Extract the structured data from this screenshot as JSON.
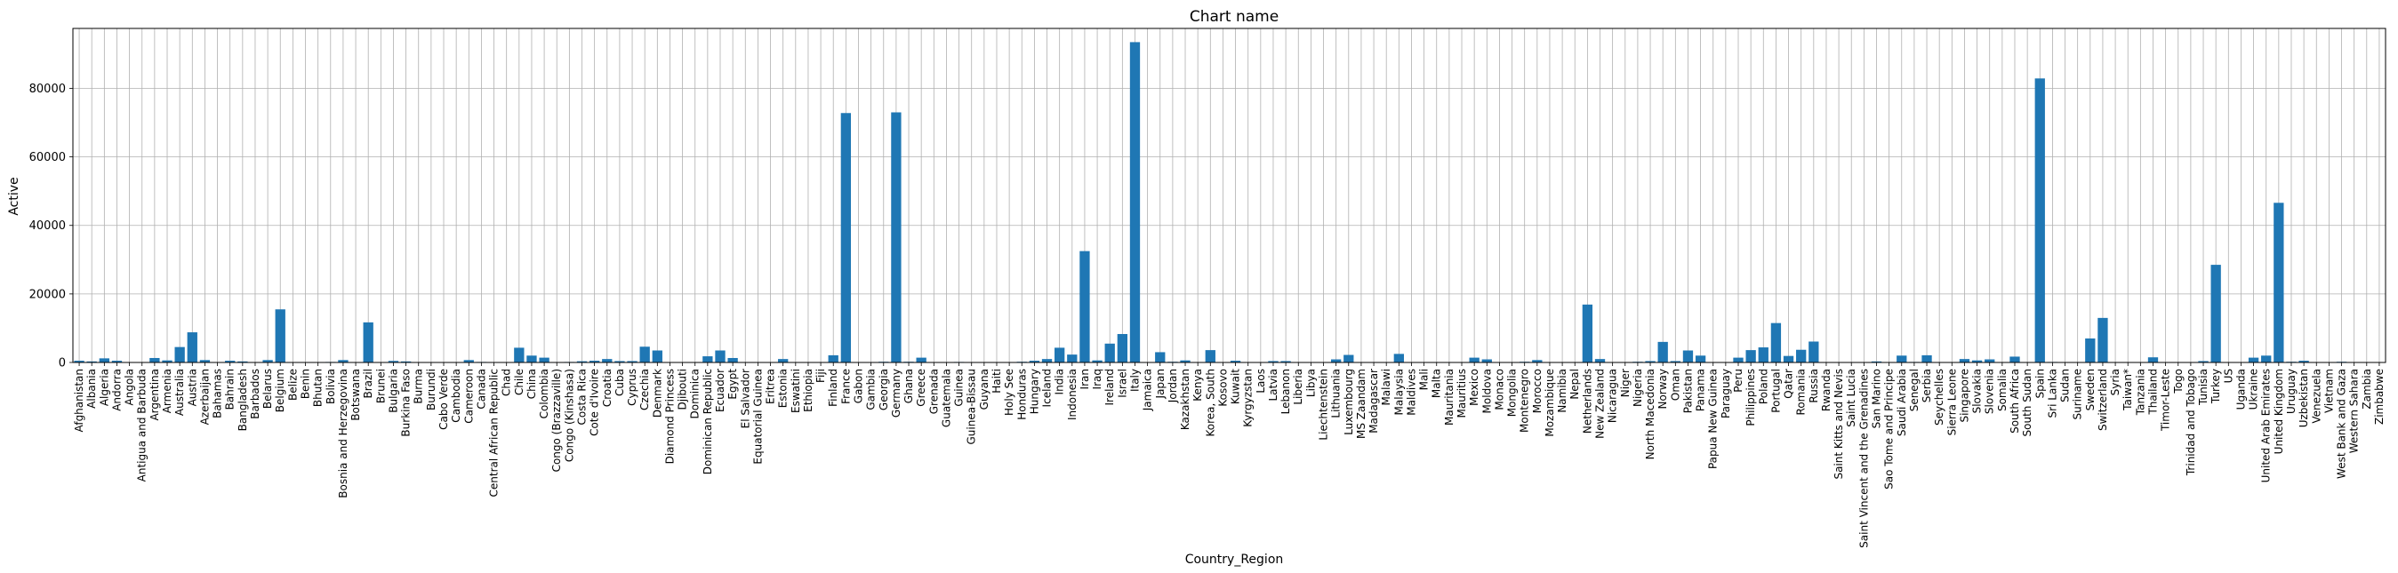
{
  "chart_data": {
    "type": "bar",
    "title": "Chart name",
    "xlabel": "Country_Region",
    "ylabel": "Active",
    "ylim": [
      0,
      97500
    ],
    "yticks": [
      0,
      20000,
      40000,
      60000,
      80000
    ],
    "ytick_labels": [
      "0",
      "20000",
      "40000",
      "60000",
      "80000"
    ],
    "grid": true,
    "bar_color": "#1f77b4",
    "categories": [
      "Afghanistan",
      "Albania",
      "Algeria",
      "Andorra",
      "Angola",
      "Antigua and Barbuda",
      "Argentina",
      "Armenia",
      "Australia",
      "Austria",
      "Azerbaijan",
      "Bahamas",
      "Bahrain",
      "Bangladesh",
      "Barbados",
      "Belarus",
      "Belgium",
      "Belize",
      "Benin",
      "Bhutan",
      "Bolivia",
      "Bosnia and Herzegovina",
      "Botswana",
      "Brazil",
      "Brunei",
      "Bulgaria",
      "Burkina Faso",
      "Burma",
      "Burundi",
      "Cabo Verde",
      "Cambodia",
      "Cameroon",
      "Canada",
      "Central African Republic",
      "Chad",
      "Chile",
      "China",
      "Colombia",
      "Congo (Brazzaville)",
      "Congo (Kinshasa)",
      "Costa Rica",
      "Cote d'Ivoire",
      "Croatia",
      "Cuba",
      "Cyprus",
      "Czechia",
      "Denmark",
      "Diamond Princess",
      "Djibouti",
      "Dominica",
      "Dominican Republic",
      "Ecuador",
      "Egypt",
      "El Salvador",
      "Equatorial Guinea",
      "Eritrea",
      "Estonia",
      "Eswatini",
      "Ethiopia",
      "Fiji",
      "Finland",
      "France",
      "Gabon",
      "Gambia",
      "Georgia",
      "Germany",
      "Ghana",
      "Greece",
      "Grenada",
      "Guatemala",
      "Guinea",
      "Guinea-Bissau",
      "Guyana",
      "Haiti",
      "Holy See",
      "Honduras",
      "Hungary",
      "Iceland",
      "India",
      "Indonesia",
      "Iran",
      "Iraq",
      "Ireland",
      "Israel",
      "Italy",
      "Jamaica",
      "Japan",
      "Jordan",
      "Kazakhstan",
      "Kenya",
      "Korea, South",
      "Kosovo",
      "Kuwait",
      "Kyrgyzstan",
      "Laos",
      "Latvia",
      "Lebanon",
      "Liberia",
      "Libya",
      "Liechtenstein",
      "Lithuania",
      "Luxembourg",
      "MS Zaandam",
      "Madagascar",
      "Malawi",
      "Malaysia",
      "Maldives",
      "Mali",
      "Malta",
      "Mauritania",
      "Mauritius",
      "Mexico",
      "Moldova",
      "Monaco",
      "Mongolia",
      "Montenegro",
      "Morocco",
      "Mozambique",
      "Namibia",
      "Nepal",
      "Netherlands",
      "New Zealand",
      "Nicaragua",
      "Niger",
      "Nigeria",
      "North Macedonia",
      "Norway",
      "Oman",
      "Pakistan",
      "Panama",
      "Papua New Guinea",
      "Paraguay",
      "Peru",
      "Philippines",
      "Poland",
      "Portugal",
      "Qatar",
      "Romania",
      "Russia",
      "Rwanda",
      "Saint Kitts and Nevis",
      "Saint Lucia",
      "Saint Vincent and the Grenadines",
      "San Marino",
      "Sao Tome and Principe",
      "Saudi Arabia",
      "Senegal",
      "Serbia",
      "Seychelles",
      "Sierra Leone",
      "Singapore",
      "Slovakia",
      "Slovenia",
      "Somalia",
      "South Africa",
      "South Sudan",
      "Spain",
      "Sri Lanka",
      "Sudan",
      "Suriname",
      "Sweden",
      "Switzerland",
      "Syria",
      "Taiwan*",
      "Tanzania",
      "Thailand",
      "Timor-Leste",
      "Togo",
      "Trinidad and Tobago",
      "Tunisia",
      "Turkey",
      "US",
      "Uganda",
      "Ukraine",
      "United Arab Emirates",
      "United Kingdom",
      "Uruguay",
      "Uzbekistan",
      "Venezuela",
      "Vietnam",
      "West Bank and Gaza",
      "Western Sahara",
      "Zambia",
      "Zimbabwe"
    ],
    "values": [
      500,
      300,
      1200,
      500,
      20,
      10,
      1300,
      600,
      4500,
      8800,
      700,
      30,
      500,
      300,
      50,
      700,
      15500,
      10,
      20,
      5,
      150,
      700,
      10,
      11700,
      50,
      450,
      300,
      10,
      2,
      5,
      50,
      700,
      150,
      10,
      20,
      4300,
      2000,
      1400,
      30,
      150,
      350,
      500,
      1000,
      400,
      400,
      4600,
      3500,
      0,
      100,
      10,
      1800,
      3500,
      1300,
      100,
      10,
      20,
      1000,
      10,
      30,
      5,
      2100,
      72800,
      10,
      2,
      200,
      73000,
      200,
      1400,
      10,
      50,
      150,
      30,
      20,
      20,
      5,
      200,
      500,
      1000,
      4300,
      2300,
      32500,
      600,
      5500,
      8300,
      93500,
      40,
      3000,
      200,
      600,
      100,
      3600,
      100,
      500,
      100,
      5,
      400,
      400,
      5,
      10,
      20,
      900,
      2200,
      0,
      50,
      5,
      2500,
      5,
      20,
      100,
      5,
      100,
      1400,
      900,
      10,
      5,
      200,
      700,
      10,
      10,
      5,
      16900,
      1000,
      5,
      20,
      200,
      400,
      6000,
      400,
      3500,
      2000,
      5,
      20,
      1400,
      3600,
      4400,
      11500,
      1900,
      3700,
      6100,
      60,
      5,
      5,
      5,
      300,
      5,
      2000,
      150,
      2100,
      5,
      5,
      1000,
      600,
      900,
      5,
      1700,
      5,
      82900,
      150,
      20,
      5,
      7000,
      13000,
      5,
      100,
      20,
      1500,
      5,
      30,
      10,
      400,
      28500,
      100,
      20,
      1400,
      2000,
      46600,
      200,
      500,
      100,
      50,
      200,
      5,
      10,
      5
    ]
  }
}
